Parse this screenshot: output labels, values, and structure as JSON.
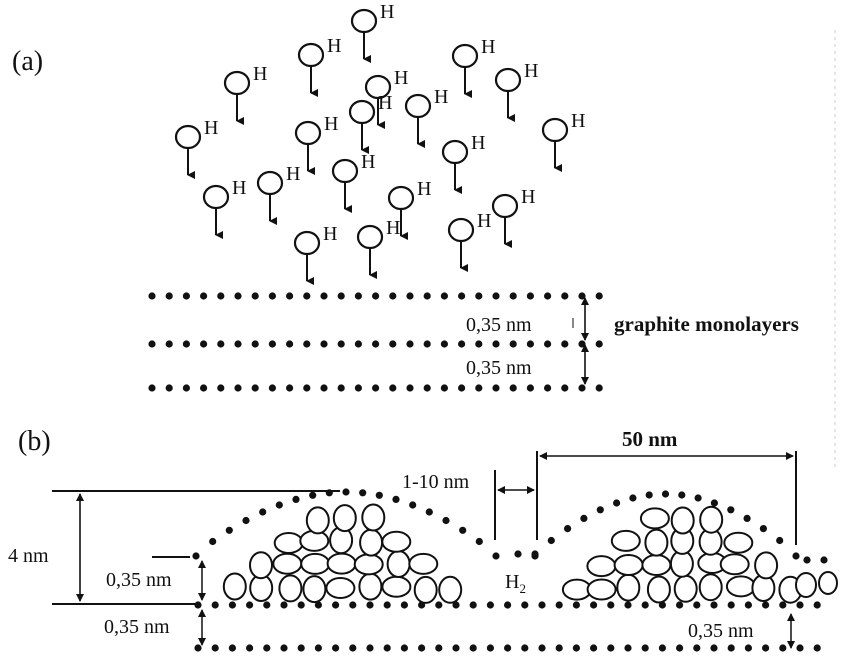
{
  "panel_a": {
    "label": "(a)",
    "atom_symbol": "H",
    "spacing_top": "0,35 nm",
    "spacing_bottom": "0,35 nm",
    "layers_caption": "graphite monolayers"
  },
  "panel_b": {
    "label": "(b)",
    "height_label": "4 nm",
    "gap_label": "1-10 nm",
    "width_label": "50 nm",
    "layer_spacing_left": "0,35 nm",
    "layer_spacing_left_lower": "0,35 nm",
    "layer_spacing_right": "0,35 nm",
    "h2_main": "H",
    "h2_sub": "2"
  },
  "colors": {
    "ink": "#111111",
    "background": "#ffffff"
  }
}
